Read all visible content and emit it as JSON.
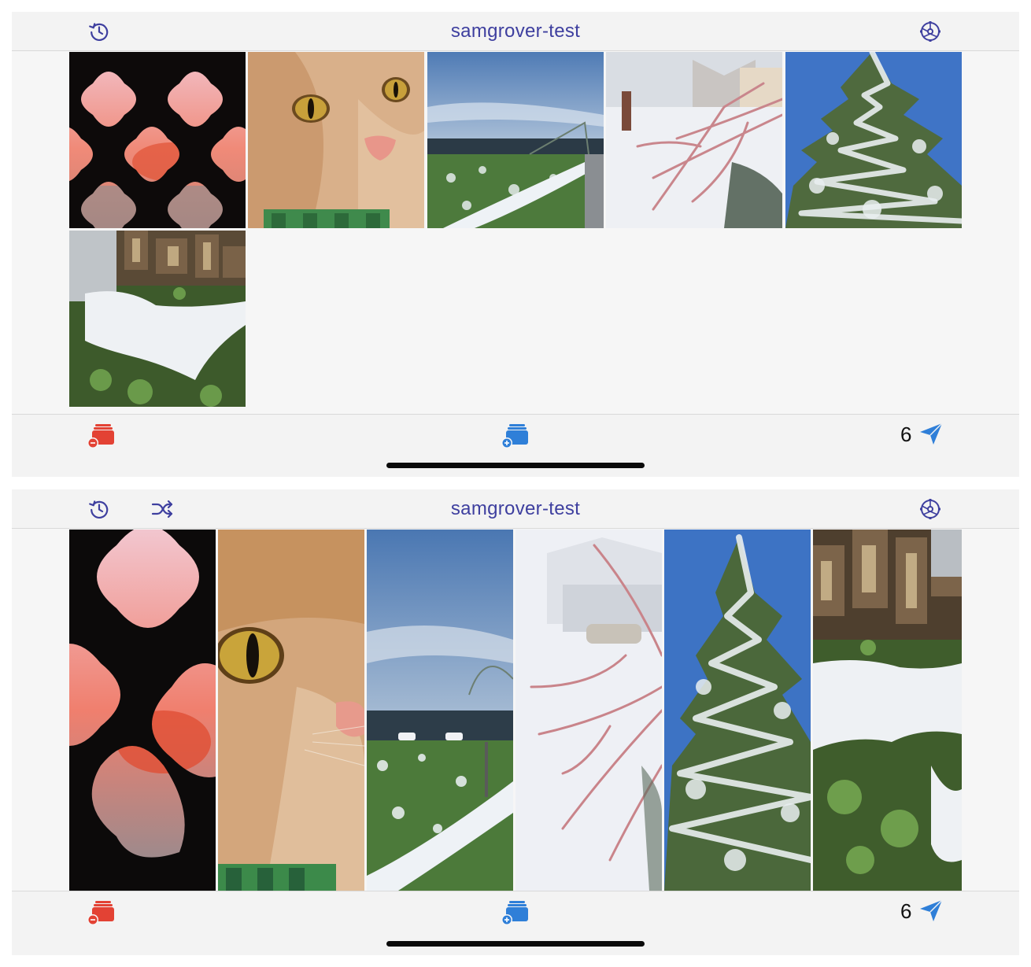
{
  "screens": [
    {
      "layout": "grid",
      "title": "samgrover-test",
      "icons": {
        "history": "history-icon",
        "settings": "gear-icon",
        "remove": "remove-stack-icon",
        "add": "add-stack-icon",
        "send": "paper-plane-icon"
      },
      "photos": [
        "lattice-sunset",
        "orange-cat",
        "snowy-field",
        "frosted-branches",
        "frosted-tree",
        "woodpile-snow"
      ],
      "selected_count": "6"
    },
    {
      "layout": "strip",
      "title": "samgrover-test",
      "icons": {
        "history": "history-icon",
        "shuffle": "shuffle-icon",
        "settings": "gear-icon",
        "remove": "remove-stack-icon",
        "add": "add-stack-icon",
        "send": "paper-plane-icon"
      },
      "photos": [
        "lattice-sunset",
        "orange-cat",
        "snowy-field",
        "frosted-branches",
        "frosted-tree",
        "woodpile-snow"
      ],
      "selected_count": "6"
    }
  ],
  "colors": {
    "accent": "#3e3f9f",
    "remove": "#e34234",
    "add": "#2f7fd8",
    "send": "#2f7fd8",
    "bar": "#f3f3f3"
  }
}
